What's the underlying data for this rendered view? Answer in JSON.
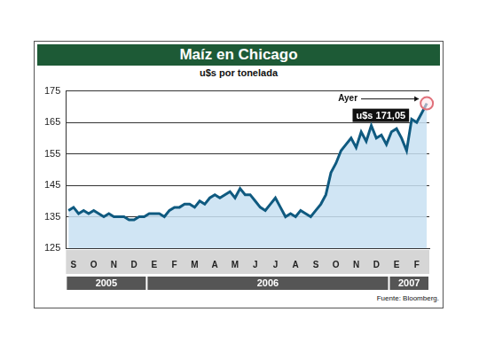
{
  "chart_data": {
    "type": "line",
    "title": "Maíz en Chicago",
    "subtitle": "u$s por tonelada",
    "categories": [
      null,
      "S",
      null,
      null,
      null,
      "O",
      null,
      null,
      null,
      "N",
      null,
      null,
      null,
      "D",
      null,
      null,
      null,
      "E",
      null,
      null,
      null,
      "F",
      null,
      null,
      null,
      "M",
      null,
      null,
      null,
      "A",
      null,
      null,
      null,
      "M",
      null,
      null,
      null,
      "J",
      null,
      null,
      null,
      "J",
      null,
      null,
      null,
      "A",
      null,
      null,
      null,
      "S",
      null,
      null,
      null,
      "O",
      null,
      null,
      null,
      "N",
      null,
      null,
      null,
      "D",
      null,
      null,
      null,
      "E",
      null,
      null,
      null,
      "F",
      null,
      null
    ],
    "values": [
      137,
      138,
      136,
      137,
      136,
      137,
      136,
      135,
      136,
      135,
      135,
      135,
      134,
      134,
      135,
      135,
      136,
      136,
      136,
      135,
      137,
      138,
      138,
      139,
      139,
      138,
      140,
      139,
      141,
      142,
      141,
      142,
      143,
      141,
      144,
      142,
      142,
      140,
      138,
      137,
      139,
      141,
      138,
      135,
      136,
      135,
      137,
      136,
      135,
      137,
      139,
      142,
      149,
      152,
      156,
      158,
      160,
      157,
      162,
      159,
      164,
      160,
      161,
      158,
      162,
      163,
      160,
      156,
      166,
      165,
      168,
      171.05
    ],
    "color": "#0f5a80",
    "ylim": [
      125,
      175
    ],
    "yticks": [
      125,
      135,
      145,
      155,
      165,
      175
    ],
    "grid": true,
    "x_groups": [
      {
        "label": "2005",
        "span": 16
      },
      {
        "label": "2006",
        "span": 48
      },
      {
        "label": "2007",
        "span": 8
      }
    ],
    "annotations": [
      {
        "text": "Ayer",
        "value": 171.05,
        "value_label": "u$s 171,05"
      }
    ],
    "source": "Fuente: Bloomberg."
  }
}
